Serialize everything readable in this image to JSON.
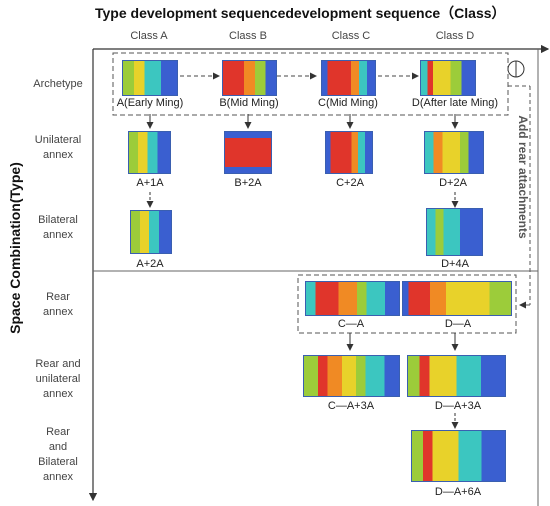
{
  "title": "Type development sequencedevelopment sequence（Class）",
  "y_axis_label": "Space Combination(Type)",
  "side_label": "Add rear attachments",
  "columns": [
    "Class A",
    "Class B",
    "Class C",
    "Class D"
  ],
  "rows": {
    "archetype": "Archetype",
    "unilateral": [
      "Unilateral",
      "annex"
    ],
    "bilateral": [
      "Bilateral",
      "annex"
    ],
    "rear": [
      "Rear",
      "annex"
    ],
    "rear_unilateral": [
      "Rear and",
      "unilateral",
      "annex"
    ],
    "rear_bilateral": [
      "Rear",
      "and",
      "Bilateral",
      "annex"
    ]
  },
  "captions": {
    "a_arch": "A(Early Ming)",
    "b_arch": "B(Mid Ming)",
    "c_arch": "C(Mid Ming)",
    "d_arch": "D(After late Ming)",
    "a_1a": "A+1A",
    "b_2a": "B+2A",
    "c_2a": "C+2A",
    "d_2a": "D+2A",
    "a_2a": "A+2A",
    "d_4a": "D+4A",
    "ca": "C—A",
    "da": "D—A",
    "ca3a": "C—A+3A",
    "da3a": "D—A+3A",
    "da6a": "D—A+6A"
  },
  "colors": {
    "red": "#e0352b",
    "orange": "#f08a24",
    "yellow": "#e8d22a",
    "green": "#9ccc3a",
    "cyan": "#3cc6c0",
    "blue": "#3a5fd0",
    "navy": "#2a3f9a"
  }
}
